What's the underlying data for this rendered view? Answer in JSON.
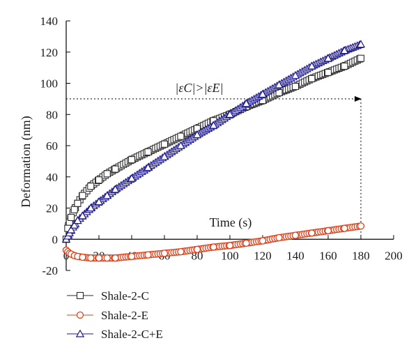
{
  "chart_data": {
    "type": "scatter",
    "title": "",
    "xlabel": "Time (s)",
    "ylabel": "Deformation (nm)",
    "xlim": [
      0,
      200
    ],
    "ylim": [
      -20,
      140
    ],
    "xticks": [
      0,
      20,
      40,
      60,
      80,
      100,
      120,
      140,
      160,
      180,
      200
    ],
    "yticks": [
      -20,
      0,
      20,
      40,
      60,
      80,
      100,
      120,
      140
    ],
    "grid": false,
    "legend": "bottom-left",
    "series": [
      {
        "name": "Shale-2-C",
        "marker": "square",
        "color": "#2b2b2b",
        "x": [
          0,
          1,
          2,
          3,
          5,
          7,
          10,
          15,
          20,
          25,
          30,
          40,
          50,
          60,
          70,
          80,
          90,
          100,
          110,
          120,
          130,
          140,
          150,
          160,
          170,
          180
        ],
        "y": [
          0,
          7,
          11,
          14,
          19,
          23,
          28,
          34,
          38,
          42,
          45,
          51,
          56,
          61,
          66,
          71,
          76,
          80,
          85,
          89,
          94,
          98,
          103,
          107,
          111,
          116
        ]
      },
      {
        "name": "Shale-2-E",
        "marker": "circle",
        "color": "#e0421c",
        "x": [
          0,
          1,
          2,
          3,
          5,
          7,
          10,
          15,
          20,
          25,
          30,
          40,
          50,
          60,
          70,
          80,
          90,
          100,
          110,
          120,
          130,
          140,
          150,
          160,
          170,
          180
        ],
        "y": [
          -7,
          -8,
          -9,
          -9.5,
          -10.5,
          -11,
          -11.5,
          -12,
          -12,
          -12,
          -12,
          -11,
          -10,
          -9,
          -8,
          -6.5,
          -5,
          -4,
          -2.5,
          -1,
          1,
          2.5,
          4,
          5.5,
          7,
          8.5
        ]
      },
      {
        "name": "Shale-2-C+E",
        "marker": "triangle",
        "color": "#1f1a8a",
        "x": [
          0,
          1,
          2,
          3,
          5,
          7,
          10,
          15,
          20,
          25,
          30,
          40,
          50,
          60,
          70,
          80,
          90,
          100,
          110,
          120,
          130,
          140,
          150,
          160,
          170,
          180
        ],
        "y": [
          0,
          2,
          4,
          6,
          9,
          12,
          15,
          20,
          24,
          28,
          32,
          39,
          46,
          53,
          60,
          67,
          73,
          80,
          87,
          93,
          99,
          105,
          111,
          116,
          121,
          125
        ]
      }
    ],
    "annotations": {
      "inequality": "|εC|>|εE|",
      "arrow_y": 90,
      "arrow_x_from": 0,
      "arrow_x_to": 180,
      "vline_left_x": 0,
      "vline_left_y_top": 112,
      "vline_right_x": 180,
      "vline_right_y_top": 90
    }
  }
}
